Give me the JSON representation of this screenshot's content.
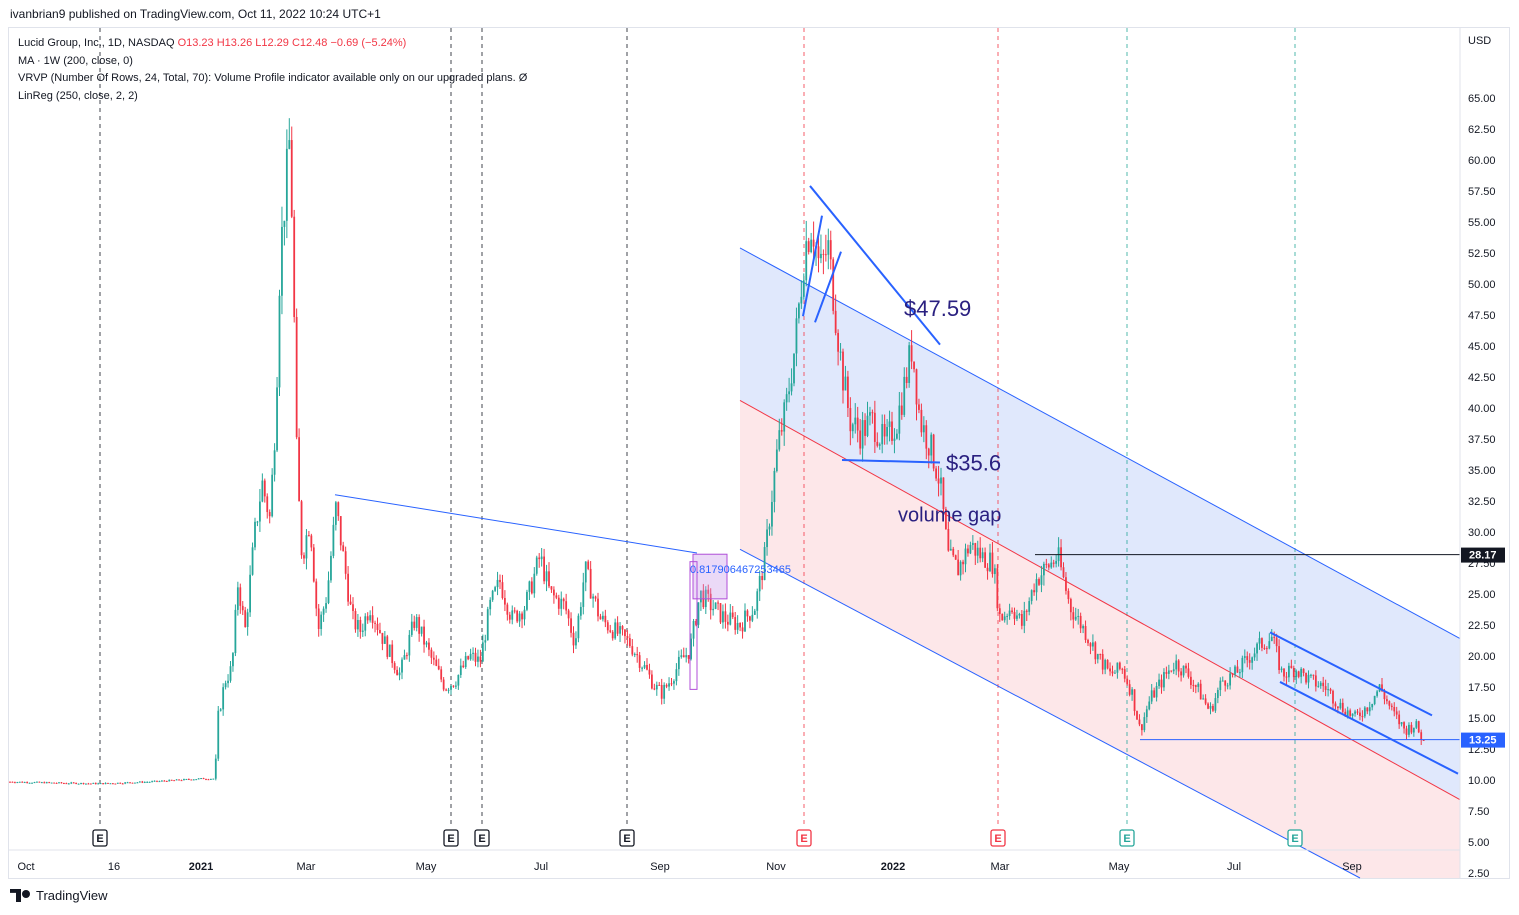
{
  "publisher": "ivanbrian9 published on TradingView.com, Oct 11, 2022 10:24 UTC+1",
  "legend": {
    "symbol": "Lucid Group, Inc., 1D, NASDAQ",
    "ohlc": "O13.23  H13.26  L12.29  C12.48  −0.69 (−5.24%)",
    "ma": "MA · 1W (200, close, 0)",
    "vrvp": "VRVP (Number Of Rows, 24, Total, 70): Volume Profile indicator available only on our upgraded plans.  Ø",
    "linreg": "LinReg (250, close, 2, 2)"
  },
  "brand": "TradingView",
  "colors": {
    "up": "#26a69a",
    "down": "#f23645",
    "channel": "#2962ff",
    "upper_fill": "#dbe4fc",
    "lower_fill": "#fde3e5",
    "annotation": "#2a2080"
  },
  "chart_data": {
    "type": "candlestick",
    "currency": "USD",
    "ylim": [
      0.6,
      67.2
    ],
    "y_ticks": [
      2.5,
      5.0,
      7.5,
      10.0,
      12.5,
      15.0,
      17.5,
      20.0,
      22.5,
      25.0,
      27.5,
      30.0,
      32.5,
      35.0,
      37.5,
      40.0,
      42.5,
      45.0,
      47.5,
      50.0,
      52.5,
      55.0,
      57.5,
      60.0,
      62.5,
      65.0
    ],
    "x_ticks": [
      "Oct",
      "16",
      "2021",
      "Mar",
      "May",
      "Jul",
      "Sep",
      "Nov",
      "2022",
      "Mar",
      "May",
      "Jul",
      "Sep"
    ],
    "price_labels": [
      {
        "value": 28.17,
        "text": "28.17",
        "color": "#131722"
      },
      {
        "value": 13.25,
        "text": "13.25",
        "color": "#2962ff"
      }
    ],
    "earnings_markers": [
      {
        "x": 100,
        "label": "E",
        "type": "neutral"
      },
      {
        "x": 451,
        "label": "E",
        "type": "neutral"
      },
      {
        "x": 482,
        "label": "E",
        "type": "neutral"
      },
      {
        "x": 627,
        "label": "E",
        "type": "neutral"
      },
      {
        "x": 804,
        "label": "E",
        "type": "miss"
      },
      {
        "x": 998,
        "label": "E",
        "type": "miss"
      },
      {
        "x": 1127,
        "label": "E",
        "type": "beat"
      },
      {
        "x": 1295,
        "label": "E",
        "type": "beat"
      }
    ],
    "annotations": [
      {
        "text": "$47.59",
        "value": 47.59
      },
      {
        "text": "$35.6",
        "value": 35.6
      },
      {
        "text": "volume gap",
        "value": 31.5
      }
    ],
    "box_label": "0.817906467253465",
    "anchors": [
      [
        10,
        9.85
      ],
      [
        60,
        9.75
      ],
      [
        100,
        9.7
      ],
      [
        150,
        9.85
      ],
      [
        200,
        10.1
      ],
      [
        215,
        10.1
      ],
      [
        218,
        15
      ],
      [
        225,
        18
      ],
      [
        232,
        19
      ],
      [
        238,
        26
      ],
      [
        245,
        22
      ],
      [
        255,
        30
      ],
      [
        262,
        34
      ],
      [
        270,
        31
      ],
      [
        276,
        40
      ],
      [
        280,
        52
      ],
      [
        285,
        57
      ],
      [
        290,
        62
      ],
      [
        293,
        52
      ],
      [
        297,
        35
      ],
      [
        302,
        28
      ],
      [
        310,
        31
      ],
      [
        318,
        22
      ],
      [
        327,
        25
      ],
      [
        336,
        32
      ],
      [
        345,
        27
      ],
      [
        352,
        23
      ],
      [
        360,
        22
      ],
      [
        370,
        24
      ],
      [
        385,
        21
      ],
      [
        400,
        18.5
      ],
      [
        415,
        23
      ],
      [
        430,
        20
      ],
      [
        445,
        17.5
      ],
      [
        455,
        18
      ],
      [
        470,
        20
      ],
      [
        480,
        19.5
      ],
      [
        490,
        24
      ],
      [
        500,
        26
      ],
      [
        512,
        23
      ],
      [
        525,
        24
      ],
      [
        540,
        28
      ],
      [
        550,
        25
      ],
      [
        565,
        24
      ],
      [
        575,
        21
      ],
      [
        585,
        27
      ],
      [
        600,
        23
      ],
      [
        615,
        22
      ],
      [
        630,
        21
      ],
      [
        645,
        19
      ],
      [
        655,
        17.5
      ],
      [
        662,
        17
      ],
      [
        670,
        18
      ],
      [
        680,
        19.5
      ],
      [
        690,
        20.5
      ],
      [
        700,
        25
      ],
      [
        712,
        24
      ],
      [
        725,
        23
      ],
      [
        740,
        22.5
      ],
      [
        755,
        24
      ],
      [
        765,
        28
      ],
      [
        772,
        33
      ],
      [
        778,
        37
      ],
      [
        786,
        40
      ],
      [
        795,
        45
      ],
      [
        805,
        53
      ],
      [
        812,
        55
      ],
      [
        820,
        51
      ],
      [
        828,
        53
      ],
      [
        835,
        48
      ],
      [
        842,
        43
      ],
      [
        850,
        39
      ],
      [
        860,
        38
      ],
      [
        872,
        39
      ],
      [
        885,
        37
      ],
      [
        897,
        39
      ],
      [
        905,
        42
      ],
      [
        912,
        45
      ],
      [
        920,
        39
      ],
      [
        930,
        37
      ],
      [
        940,
        34
      ],
      [
        948,
        28
      ],
      [
        958,
        27
      ],
      [
        970,
        29
      ],
      [
        982,
        28
      ],
      [
        993,
        27.5
      ],
      [
        1000,
        23
      ],
      [
        1012,
        24
      ],
      [
        1022,
        22.5
      ],
      [
        1035,
        26
      ],
      [
        1045,
        27
      ],
      [
        1058,
        28
      ],
      [
        1070,
        24
      ],
      [
        1085,
        22
      ],
      [
        1098,
        20
      ],
      [
        1110,
        18.5
      ],
      [
        1122,
        19
      ],
      [
        1132,
        17
      ],
      [
        1140,
        14
      ],
      [
        1150,
        16.5
      ],
      [
        1162,
        18
      ],
      [
        1175,
        19.5
      ],
      [
        1188,
        18.5
      ],
      [
        1200,
        17
      ],
      [
        1210,
        15.5
      ],
      [
        1222,
        18
      ],
      [
        1235,
        18.5
      ],
      [
        1250,
        20
      ],
      [
        1262,
        21
      ],
      [
        1272,
        21.5
      ],
      [
        1282,
        18.5
      ],
      [
        1295,
        19
      ],
      [
        1310,
        18
      ],
      [
        1325,
        17.5
      ],
      [
        1340,
        16
      ],
      [
        1355,
        15
      ],
      [
        1368,
        16
      ],
      [
        1380,
        17.5
      ],
      [
        1392,
        15.5
      ],
      [
        1405,
        14
      ],
      [
        1415,
        14.5
      ],
      [
        1423,
        13.2
      ],
      [
        1426,
        12.48
      ]
    ]
  }
}
